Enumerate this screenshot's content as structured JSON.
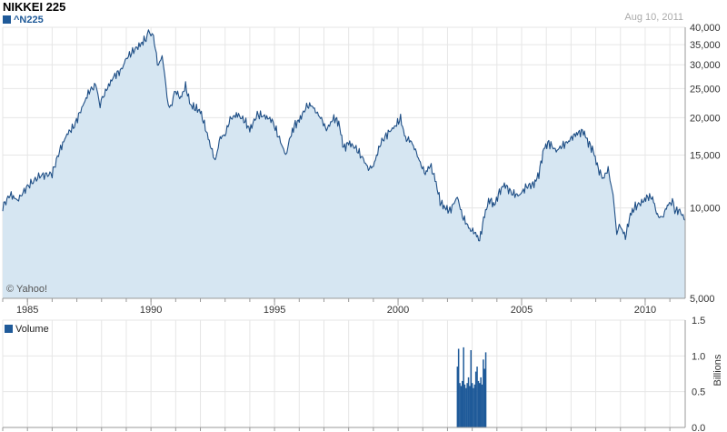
{
  "header": {
    "title": "NIKKEI 225",
    "series_label": "^N225",
    "date": "Aug 10, 2011",
    "credit": "© Yahoo!",
    "volume_label": "Volume",
    "volume_axis_title": "Billions"
  },
  "colors": {
    "line": "#1f4f86",
    "fill": "#d6e6f2",
    "volume_bar": "#1f5a99",
    "grid": "#e6e6e6",
    "axis": "#999999"
  },
  "chart_data": [
    {
      "type": "area",
      "title": "NIKKEI 225",
      "scale": "log",
      "ylim": [
        5000,
        40000
      ],
      "xlim": [
        1984.0,
        2011.62
      ],
      "y_ticks": [
        5000,
        10000,
        15000,
        20000,
        25000,
        30000,
        35000,
        40000
      ],
      "y_tick_labels": [
        "5,000",
        "10,000",
        "15,000",
        "20,000",
        "25,000",
        "30,000",
        "35,000",
        "40,000"
      ],
      "x_ticks": [
        1985,
        1990,
        1995,
        2000,
        2005,
        2010
      ],
      "x_tick_labels": [
        "1985",
        "1990",
        "1995",
        "2000",
        "2005",
        "2010"
      ],
      "grid": true,
      "series": [
        {
          "name": "^N225",
          "x": [
            1984.0,
            1984.3,
            1984.6,
            1985.0,
            1985.5,
            1986.0,
            1986.3,
            1986.6,
            1986.9,
            1987.2,
            1987.5,
            1987.8,
            1987.9,
            1988.2,
            1988.5,
            1988.8,
            1989.0,
            1989.3,
            1989.6,
            1989.8,
            1989.95,
            1990.1,
            1990.3,
            1990.45,
            1990.6,
            1990.75,
            1990.9,
            1991.0,
            1991.2,
            1991.4,
            1991.6,
            1991.8,
            1992.0,
            1992.2,
            1992.4,
            1992.6,
            1992.8,
            1993.0,
            1993.2,
            1993.5,
            1993.8,
            1994.0,
            1994.3,
            1994.6,
            1994.9,
            1995.2,
            1995.45,
            1995.6,
            1995.8,
            1996.0,
            1996.3,
            1996.5,
            1996.7,
            1996.9,
            1997.1,
            1997.4,
            1997.6,
            1997.8,
            1998.0,
            1998.3,
            1998.6,
            1998.8,
            1999.0,
            1999.3,
            1999.6,
            1999.9,
            2000.1,
            2000.3,
            2000.5,
            2000.7,
            2000.9,
            2001.1,
            2001.3,
            2001.5,
            2001.7,
            2001.9,
            2002.1,
            2002.4,
            2002.6,
            2002.9,
            2003.1,
            2003.3,
            2003.5,
            2003.7,
            2003.9,
            2004.1,
            2004.3,
            2004.6,
            2004.9,
            2005.2,
            2005.5,
            2005.7,
            2005.9,
            2006.1,
            2006.4,
            2006.6,
            2006.9,
            2007.1,
            2007.3,
            2007.5,
            2007.7,
            2007.9,
            2008.1,
            2008.3,
            2008.5,
            2008.7,
            2008.85,
            2009.0,
            2009.2,
            2009.4,
            2009.6,
            2009.9,
            2010.1,
            2010.3,
            2010.5,
            2010.7,
            2010.9,
            2011.1,
            2011.2,
            2011.4,
            2011.62
          ],
          "values": [
            10100,
            11100,
            10600,
            11800,
            12800,
            13000,
            15500,
            17600,
            18800,
            21500,
            24500,
            25800,
            22000,
            24800,
            27500,
            28800,
            31500,
            33500,
            35200,
            36800,
            38900,
            37000,
            29500,
            32500,
            25500,
            21000,
            23500,
            24500,
            23200,
            25500,
            22000,
            21500,
            21000,
            18500,
            16200,
            14300,
            17200,
            17500,
            19800,
            20500,
            19500,
            18200,
            20500,
            20200,
            19600,
            17000,
            15000,
            16800,
            18800,
            19600,
            21800,
            22000,
            20800,
            19800,
            18200,
            20000,
            19200,
            15800,
            16500,
            15800,
            14500,
            13500,
            13800,
            16500,
            17800,
            18800,
            19900,
            17000,
            16800,
            15600,
            14100,
            13000,
            13900,
            12500,
            10500,
            10000,
            9800,
            10900,
            9400,
            8500,
            8300,
            7800,
            9500,
            10700,
            10200,
            11300,
            12000,
            11200,
            11000,
            11800,
            12000,
            13000,
            15800,
            16500,
            15500,
            16000,
            16700,
            17400,
            17800,
            18000,
            16500,
            15500,
            13500,
            12500,
            13500,
            11000,
            8300,
            8700,
            8000,
            9500,
            10100,
            10500,
            10900,
            10800,
            9400,
            9300,
            10200,
            10500,
            9800,
            9800,
            9100
          ]
        }
      ]
    },
    {
      "type": "bar",
      "title": "Volume",
      "ylabel": "Billions",
      "ylim": [
        0,
        1.5
      ],
      "y_ticks": [
        0,
        0.5,
        1.0,
        1.5
      ],
      "y_tick_labels": [
        "0.0",
        "0.5",
        "1.0",
        "1.5"
      ],
      "grid": true,
      "series": [
        {
          "name": "Volume",
          "x": [
            2002.4,
            2002.45,
            2002.5,
            2002.55,
            2002.6,
            2002.65,
            2002.7,
            2002.75,
            2002.8,
            2002.85,
            2002.9,
            2002.95,
            2003.0,
            2003.05,
            2003.1,
            2003.15,
            2003.2,
            2003.25,
            2003.3,
            2003.35,
            2003.4,
            2003.45,
            2003.5,
            2003.55
          ],
          "values": [
            0.85,
            1.1,
            0.62,
            0.58,
            0.65,
            1.12,
            0.6,
            0.55,
            0.62,
            0.7,
            0.58,
            1.08,
            0.62,
            0.55,
            0.6,
            0.78,
            0.85,
            0.65,
            0.62,
            0.7,
            0.6,
            0.95,
            0.82,
            1.05
          ]
        }
      ]
    }
  ]
}
